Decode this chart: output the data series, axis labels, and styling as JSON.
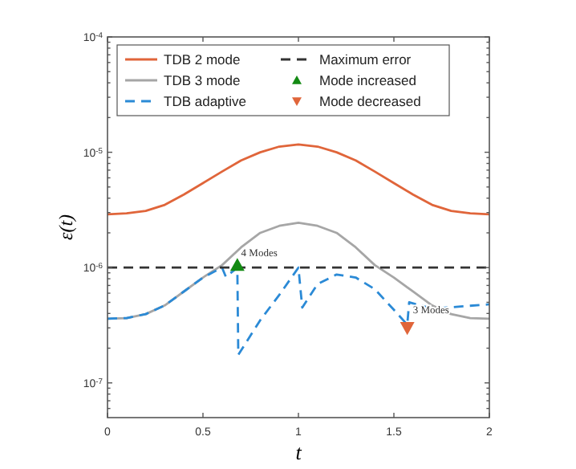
{
  "chart_data": {
    "type": "line",
    "xlabel": "t",
    "ylabel": "ε(t)",
    "log": "y",
    "xlim": [
      0,
      2
    ],
    "ylim": [
      5e-08,
      0.0001
    ],
    "xticks": [
      0,
      0.5,
      1,
      1.5,
      2
    ],
    "yticks": [
      {
        "value": 6e-08,
        "label": null
      },
      {
        "value": 7e-08,
        "label": null
      },
      {
        "value": 8e-08,
        "label": null
      },
      {
        "value": 9e-08,
        "label": null
      },
      {
        "value": 1e-07,
        "label": "10$^{-7}$"
      },
      {
        "value": 2e-07,
        "label": null
      },
      {
        "value": 3e-07,
        "label": null
      },
      {
        "value": 4e-07,
        "label": null
      },
      {
        "value": 5e-07,
        "label": null
      },
      {
        "value": 6e-07,
        "label": null
      },
      {
        "value": 7e-07,
        "label": null
      },
      {
        "value": 8e-07,
        "label": null
      },
      {
        "value": 9e-07,
        "label": null
      },
      {
        "value": 1e-06,
        "label": "10$^{-6}$"
      },
      {
        "value": 2e-06,
        "label": null
      },
      {
        "value": 3e-06,
        "label": null
      },
      {
        "value": 4e-06,
        "label": null
      },
      {
        "value": 5e-06,
        "label": null
      },
      {
        "value": 6e-06,
        "label": null
      },
      {
        "value": 7e-06,
        "label": null
      },
      {
        "value": 8e-06,
        "label": null
      },
      {
        "value": 9e-06,
        "label": null
      },
      {
        "value": 1e-05,
        "label": "10$^{-5}$"
      },
      {
        "value": 2e-05,
        "label": null
      },
      {
        "value": 3e-05,
        "label": null
      },
      {
        "value": 4e-05,
        "label": null
      },
      {
        "value": 5e-05,
        "label": null
      },
      {
        "value": 6e-05,
        "label": null
      },
      {
        "value": 7e-05,
        "label": null
      },
      {
        "value": 8e-05,
        "label": null
      },
      {
        "value": 9e-05,
        "label": null
      },
      {
        "value": 0.0001,
        "label": "10$^{-4}$"
      }
    ],
    "grid": false,
    "legend": "top left",
    "series": [
      {
        "name": "TDB 2 mode",
        "color": "#e0653a",
        "line_style": "solid",
        "x": [
          0,
          0.1,
          0.2,
          0.3,
          0.4,
          0.5,
          0.6,
          0.7,
          0.8,
          0.9,
          1,
          1.1,
          1.2,
          1.3,
          1.4,
          1.5,
          1.6,
          1.7,
          1.8,
          1.9,
          2
        ],
        "values": [
          2.9e-06,
          2.95e-06,
          3.1e-06,
          3.5e-06,
          4.3e-06,
          5.4e-06,
          6.8e-06,
          8.5e-06,
          1e-05,
          1.12e-05,
          1.17e-05,
          1.12e-05,
          1e-05,
          8.5e-06,
          6.8e-06,
          5.4e-06,
          4.3e-06,
          3.5e-06,
          3.1e-06,
          2.95e-06,
          2.9e-06
        ]
      },
      {
        "name": "TDB 3 mode",
        "color": "#a6a6a6",
        "line_style": "solid",
        "x": [
          0,
          0.1,
          0.2,
          0.3,
          0.4,
          0.5,
          0.6,
          0.7,
          0.8,
          0.9,
          1,
          1.1,
          1.2,
          1.3,
          1.4,
          1.5,
          1.6,
          1.7,
          1.8,
          1.9,
          2
        ],
        "values": [
          3.6e-07,
          3.65e-07,
          3.95e-07,
          4.7e-07,
          6.2e-07,
          8.2e-07,
          1.05e-06,
          1.5e-06,
          2e-06,
          2.3e-06,
          2.45e-06,
          2.3e-06,
          2e-06,
          1.5e-06,
          1.05e-06,
          8.2e-07,
          6.2e-07,
          4.7e-07,
          3.95e-07,
          3.65e-07,
          3.6e-07
        ]
      },
      {
        "name": "TDB adaptive",
        "color": "#2b8ad6",
        "line_style": "dashed",
        "x": [
          0,
          0.1,
          0.2,
          0.3,
          0.4,
          0.5,
          0.6,
          0.62,
          0.68,
          0.685,
          0.8,
          0.9,
          1.0,
          1.02,
          1.1,
          1.2,
          1.3,
          1.4,
          1.5,
          1.57,
          1.58,
          1.7,
          1.85,
          2
        ],
        "values": [
          3.6e-07,
          3.65e-07,
          3.95e-07,
          4.7e-07,
          6.2e-07,
          8.2e-07,
          1e-06,
          8.3e-07,
          1e-06,
          1.75e-07,
          3.5e-07,
          5.8e-07,
          1e-06,
          4.5e-07,
          7.2e-07,
          8.7e-07,
          8.2e-07,
          6.5e-07,
          4.3e-07,
          3.2e-07,
          5e-07,
          4.4e-07,
          4.6e-07,
          4.8e-07
        ]
      },
      {
        "name": "Maximum error",
        "color": "#333333",
        "line_style": "dashed",
        "x": [
          0,
          2
        ],
        "values": [
          1e-06,
          1e-06
        ]
      },
      {
        "name": "Mode increased",
        "type": "scatter",
        "color": "#138a13",
        "marker": "triangle",
        "x": [
          0.68
        ],
        "values": [
          1.05e-06
        ]
      },
      {
        "name": "Mode decreased",
        "type": "scatter",
        "color": "#e0653a",
        "marker": "triangle-down",
        "x": [
          1.57
        ],
        "values": [
          3e-07
        ]
      }
    ],
    "annotations": [
      {
        "text": "4 Modes",
        "x": 0.7,
        "y": 1.25e-06
      },
      {
        "text": "3 Modes",
        "x": 1.6,
        "y": 4.05e-07
      }
    ]
  }
}
